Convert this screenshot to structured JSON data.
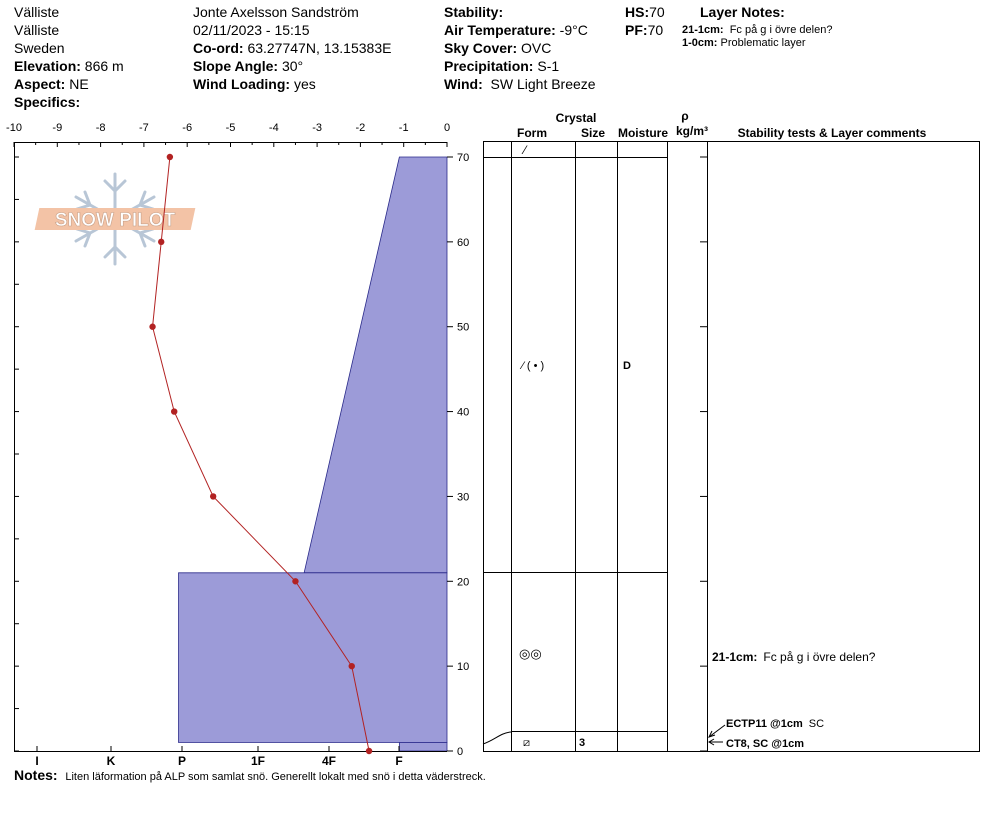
{
  "header": {
    "location1": "Välliste",
    "location2": "Välliste",
    "country": "Sweden",
    "elevation_label": "Elevation:",
    "elevation_value": "866 m",
    "aspect_label": "Aspect:",
    "aspect_value": "NE",
    "specifics_label": "Specifics:",
    "observer": "Jonte Axelsson Sandström",
    "datetime": "02/11/2023 - 15:15",
    "coord_label": "Co-ord:",
    "coord_value": "63.27747N, 13.15383E",
    "slope_label": "Slope Angle:",
    "slope_value": "30°",
    "windload_label": "Wind Loading:",
    "windload_value": "yes",
    "stability_label": "Stability:",
    "airtemp_label": "Air Temperature:",
    "airtemp_value": "-9°C",
    "sky_label": "Sky Cover:",
    "sky_value": "OVC",
    "precip_label": "Precipitation:",
    "precip_value": "S-1",
    "wind_label": "Wind:",
    "wind_value": "SW  Light Breeze",
    "hs_label": "HS:",
    "hs_value": "70",
    "pf_label": "PF:",
    "pf_value": "70",
    "layer_notes_title": "Layer Notes:",
    "layer_notes": [
      {
        "range": "21-1cm:",
        "text": "Fc på g i övre delen?"
      },
      {
        "range": "1-0cm:",
        "text": "Problematic layer"
      }
    ]
  },
  "logo_text": "SNOW PILOT",
  "table": {
    "crystal_label": "Crystal",
    "form_label": "Form",
    "size_label": "Size",
    "moisture_label": "Moisture",
    "rho_label": "ρ",
    "density_label": "kg/m³",
    "tests_label": "Stability tests & Layer comments",
    "form_top": "⁄",
    "form_mid": "⁄ ( • )",
    "moisture_mid": "D",
    "form_low": "◎◎",
    "form_bottom": "⧄",
    "size_bottom": "3",
    "layer_comment_range": "21-1cm:",
    "layer_comment_text": "Fc på g i övre delen?",
    "test1_name": "ECTP11 @1cm",
    "test1_extra": "SC",
    "test2_name": "CT8, SC @1cm"
  },
  "notes_label": "Notes:",
  "notes_text": "Liten läformation på ALP som samlat snö. Generellt lokalt med snö i detta väderstreck.",
  "colors": {
    "hardness_fill": "#9C9BD8",
    "temp_line": "#B22222"
  },
  "chart_data": {
    "type": "line",
    "temp_axis_ticks": [
      "-10",
      "-9",
      "-8",
      "-7",
      "-6",
      "-5",
      "-4",
      "-3",
      "-2",
      "-1",
      "0"
    ],
    "temp_range": [
      -10,
      0
    ],
    "height_ticks": [
      "0",
      "10",
      "20",
      "30",
      "40",
      "50",
      "60",
      "70"
    ],
    "height_range": [
      0,
      70
    ],
    "hardness_ticks": [
      "I",
      "K",
      "P",
      "1F",
      "4F",
      "F"
    ],
    "temperature_profile": [
      {
        "height": 70,
        "temp": -6.4
      },
      {
        "height": 60,
        "temp": -6.6
      },
      {
        "height": 50,
        "temp": -6.8
      },
      {
        "height": 40,
        "temp": -6.3
      },
      {
        "height": 30,
        "temp": -5.4
      },
      {
        "height": 20,
        "temp": -3.5
      },
      {
        "height": 10,
        "temp": -2.2
      },
      {
        "height": 0,
        "temp": -1.8
      }
    ],
    "hardness_layers": [
      {
        "bottom": 21,
        "top": 70,
        "hardness_at_bottom": -3.3,
        "hardness_at_top": -1.1
      },
      {
        "bottom": 1,
        "top": 21,
        "hardness": -6.2
      },
      {
        "bottom": 0,
        "top": 1,
        "hardness": -1.1
      }
    ]
  }
}
